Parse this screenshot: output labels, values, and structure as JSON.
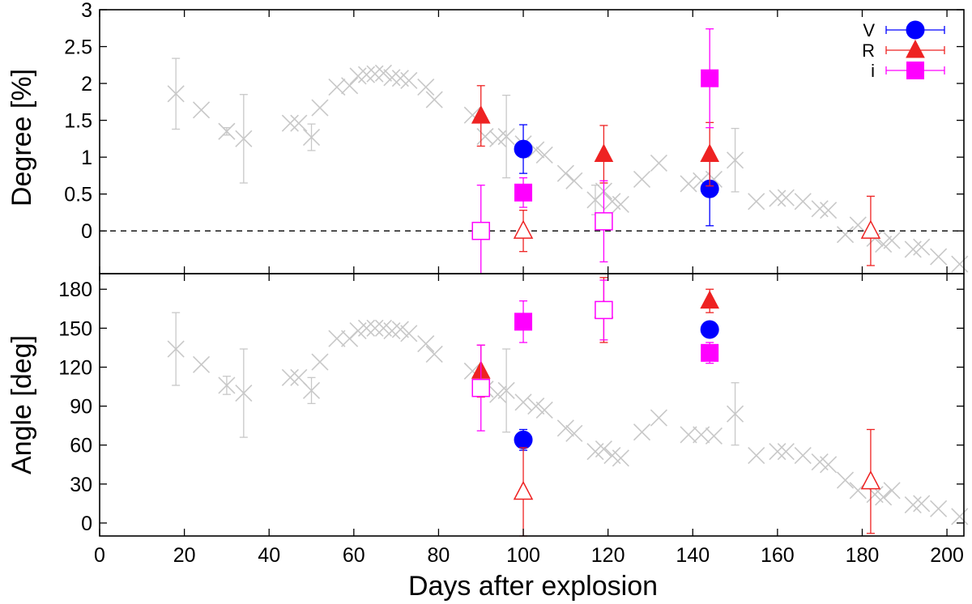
{
  "chart_data": {
    "type": "scatter",
    "xlabel": "Days after explosion",
    "xlim": [
      0,
      204
    ],
    "xticks": [
      0,
      20,
      40,
      60,
      80,
      100,
      120,
      140,
      160,
      180,
      200
    ],
    "colors": {
      "V": "#0000ff",
      "R": "#ee2222",
      "i": "#ff00ff",
      "reference": "#c8c8c8"
    },
    "legend": {
      "position": "top-right",
      "entries": [
        "V",
        "R",
        "i"
      ]
    },
    "panels": [
      {
        "id": "degree",
        "ylabel": "Degree [%]",
        "ylim": [
          -0.58,
          3.0
        ],
        "yticks": [
          0,
          0.5,
          1,
          1.5,
          2,
          2.5,
          3
        ],
        "yticklabels": [
          "0",
          "0.5",
          "1",
          "1.5",
          "2",
          "2.5",
          "3"
        ],
        "zero_line": true,
        "reference": {
          "x": [
            18,
            24,
            30,
            34,
            45,
            47,
            50,
            52,
            56,
            59,
            61,
            63,
            65,
            67,
            69,
            71,
            73,
            77,
            79,
            88,
            91,
            94,
            96,
            100,
            103,
            105,
            110,
            112,
            117,
            119,
            121,
            123,
            128,
            132,
            139,
            142,
            145,
            150,
            155,
            160,
            162,
            166,
            170,
            172,
            176,
            179,
            183,
            185,
            187,
            192,
            194,
            198,
            203
          ],
          "y": [
            1.86,
            1.64,
            1.35,
            1.25,
            1.46,
            1.46,
            1.27,
            1.67,
            1.95,
            1.97,
            2.1,
            2.12,
            2.13,
            2.14,
            2.08,
            2.07,
            2.04,
            1.95,
            1.78,
            1.57,
            1.28,
            1.25,
            1.28,
            1.18,
            1.1,
            1.03,
            0.78,
            0.68,
            0.42,
            0.54,
            0.4,
            0.36,
            0.7,
            0.92,
            0.64,
            0.68,
            0.7,
            0.96,
            0.4,
            0.44,
            0.45,
            0.4,
            0.3,
            0.28,
            -0.05,
            0.08,
            -0.1,
            -0.18,
            -0.13,
            -0.25,
            -0.22,
            -0.35,
            -0.45
          ],
          "yerr": [
            0.48,
            0,
            0.05,
            0.6,
            0,
            0,
            0.18,
            0,
            0,
            0,
            0,
            0,
            0,
            0,
            0,
            0,
            0,
            0,
            0,
            0,
            0,
            0,
            0.56,
            0,
            0,
            0,
            0,
            0,
            0.2,
            0,
            0,
            0,
            0,
            0,
            0,
            0,
            0,
            0.43,
            0,
            0,
            0,
            0,
            0,
            0,
            0,
            0,
            0,
            0,
            0,
            0,
            0,
            0,
            0
          ]
        },
        "series": [
          {
            "name": "V",
            "marker": "circle",
            "points": [
              {
                "x": 100,
                "y": 1.11,
                "err": 0.33,
                "filled": true
              },
              {
                "x": 144,
                "y": 0.57,
                "err": 0.5,
                "filled": true
              }
            ]
          },
          {
            "name": "R",
            "marker": "triangle",
            "points": [
              {
                "x": 90,
                "y": 1.56,
                "err": 0.41,
                "filled": true
              },
              {
                "x": 100,
                "y": 0.0,
                "err": 0.28,
                "filled": false
              },
              {
                "x": 119,
                "y": 1.04,
                "err": 0.39,
                "filled": true
              },
              {
                "x": 144,
                "y": 1.04,
                "err": 0.43,
                "filled": true
              },
              {
                "x": 182,
                "y": 0.0,
                "err": 0.47,
                "filled": false
              }
            ]
          },
          {
            "name": "i",
            "marker": "square",
            "points": [
              {
                "x": 90,
                "y": 0.0,
                "err": 0.62,
                "filled": false
              },
              {
                "x": 100,
                "y": 0.52,
                "err": 0.2,
                "filled": true
              },
              {
                "x": 119,
                "y": 0.13,
                "err": 0.55,
                "filled": false
              },
              {
                "x": 144,
                "y": 2.07,
                "err": 0.67,
                "filled": true
              }
            ]
          }
        ]
      },
      {
        "id": "angle",
        "ylabel": "Angle [deg]",
        "ylim": [
          -10,
          192
        ],
        "yticks": [
          0,
          30,
          60,
          90,
          120,
          150,
          180
        ],
        "yticklabels": [
          "0",
          "30",
          "60",
          "90",
          "120",
          "150",
          "180"
        ],
        "zero_line": false,
        "reference": {
          "x": [
            18,
            24,
            30,
            34,
            45,
            47,
            50,
            52,
            56,
            59,
            61,
            63,
            65,
            67,
            69,
            71,
            73,
            77,
            79,
            88,
            91,
            94,
            96,
            100,
            103,
            105,
            110,
            112,
            117,
            119,
            121,
            123,
            128,
            132,
            139,
            142,
            145,
            150,
            155,
            160,
            162,
            166,
            170,
            172,
            176,
            179,
            183,
            185,
            187,
            192,
            194,
            198,
            203
          ],
          "y": [
            134,
            122,
            106,
            100,
            112,
            112,
            102,
            124,
            142,
            142,
            148,
            150,
            150,
            150,
            148,
            149,
            146,
            138,
            130,
            117,
            103,
            99,
            102,
            93,
            90,
            87,
            73,
            69,
            55,
            57,
            52,
            50,
            70,
            81,
            68,
            68,
            67,
            84,
            52,
            55,
            55,
            52,
            47,
            45,
            33,
            25,
            22,
            20,
            25,
            14,
            15,
            11,
            5
          ],
          "yerr": [
            28,
            0,
            7,
            34,
            0,
            0,
            10,
            0,
            0,
            0,
            0,
            0,
            0,
            0,
            0,
            0,
            0,
            0,
            0,
            0,
            0,
            0,
            32,
            0,
            0,
            0,
            0,
            0,
            0,
            0,
            0,
            0,
            0,
            0,
            0,
            0,
            0,
            24,
            0,
            0,
            0,
            0,
            0,
            0,
            0,
            0,
            0,
            0,
            0,
            0,
            0,
            0,
            0
          ]
        },
        "series": [
          {
            "name": "V",
            "marker": "circle",
            "points": [
              {
                "x": 100,
                "y": 64,
                "err": 8,
                "filled": true
              },
              {
                "x": 144,
                "y": 149,
                "err": 5,
                "filled": true
              }
            ]
          },
          {
            "name": "R",
            "marker": "triangle",
            "points": [
              {
                "x": 90,
                "y": 117,
                "err": 20,
                "filled": true
              },
              {
                "x": 100,
                "y": 24,
                "err": 34,
                "filled": false
              },
              {
                "x": 119,
                "y": 164,
                "err": 25,
                "filled": true
              },
              {
                "x": 144,
                "y": 171,
                "err": 9,
                "filled": true
              },
              {
                "x": 182,
                "y": 32,
                "err": 40,
                "filled": false
              }
            ]
          },
          {
            "name": "i",
            "marker": "square",
            "points": [
              {
                "x": 90,
                "y": 104,
                "err": 33,
                "filled": false
              },
              {
                "x": 100,
                "y": 155,
                "err": 16,
                "filled": true
              },
              {
                "x": 119,
                "y": 164,
                "err": 23,
                "filled": false
              },
              {
                "x": 144,
                "y": 131,
                "err": 8,
                "filled": true
              }
            ]
          }
        ]
      }
    ]
  }
}
